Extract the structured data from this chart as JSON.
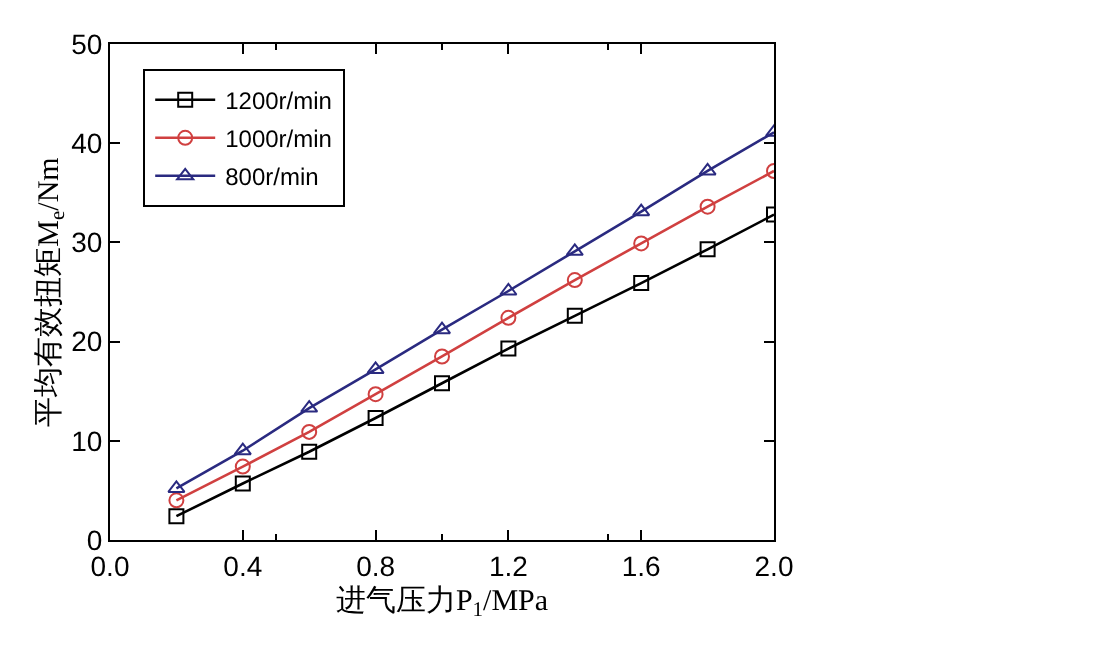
{
  "chart_data": {
    "type": "line",
    "xlabel": "进气压力P$_{1}$/MPa",
    "ylabel": "平均有效扭矩M$_{e}$/Nm",
    "x": [
      0.2,
      0.4,
      0.6,
      0.8,
      1.0,
      1.2,
      1.4,
      1.6,
      1.8,
      2.0
    ],
    "series": [
      {
        "name": "1200r/min",
        "color": "#000000",
        "marker": "square",
        "values": [
          2.4,
          5.7,
          8.9,
          12.3,
          15.8,
          19.3,
          22.6,
          25.9,
          29.3,
          32.8
        ]
      },
      {
        "name": "1000r/min",
        "color": "#d04040",
        "marker": "circle",
        "values": [
          4.0,
          7.4,
          10.9,
          14.7,
          18.5,
          22.4,
          26.2,
          29.9,
          33.6,
          37.2
        ]
      },
      {
        "name": "800r/min",
        "color": "#2a2a80",
        "marker": "triangle",
        "values": [
          5.2,
          9.0,
          13.3,
          17.2,
          21.2,
          25.1,
          29.1,
          33.1,
          37.2,
          41.1
        ]
      }
    ],
    "xlim": [
      0,
      2.0
    ],
    "ylim": [
      0,
      50
    ],
    "xticks": [
      {
        "value": 0,
        "label": "0.0"
      },
      {
        "value": 0.4,
        "label": "0.4"
      },
      {
        "value": 0.8,
        "label": "0.8"
      },
      {
        "value": 1.2,
        "label": "1.2"
      },
      {
        "value": 1.6,
        "label": "1.6"
      },
      {
        "value": 2.0,
        "label": "2.0"
      }
    ],
    "yticks": [
      0,
      10,
      20,
      30,
      40,
      50
    ],
    "legend": "top left",
    "line_style": "solid"
  }
}
